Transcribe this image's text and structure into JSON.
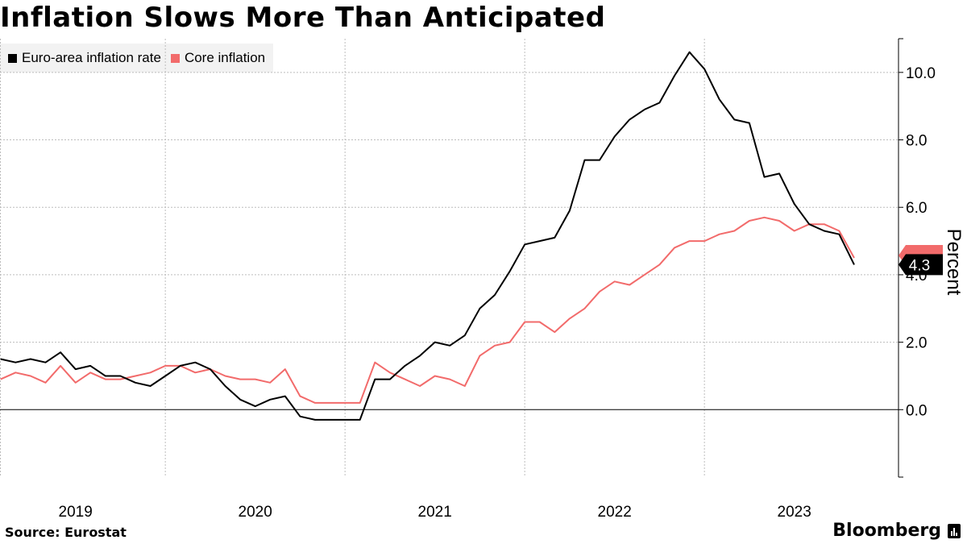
{
  "title": "Inflation Slows More Than Anticipated",
  "legend": [
    {
      "label": "Euro-area inflation rate",
      "color": "#000000"
    },
    {
      "label": "Core inflation",
      "color": "#f26b6b"
    }
  ],
  "source": "Source:  Eurostat",
  "brand": "Bloomberg",
  "chart_data": {
    "type": "line",
    "title": "Inflation Slows More Than Anticipated",
    "xlabel": "",
    "ylabel": "Percent",
    "ylim": [
      -2,
      11
    ],
    "yticks": [
      0,
      2,
      4,
      6,
      8,
      10
    ],
    "ytick_labels": [
      "0.0",
      "2.0",
      "4.0",
      "6.0",
      "8.0",
      "10.0"
    ],
    "xlim": [
      2018.58,
      2023.58
    ],
    "xtick_labels": [
      {
        "label": "2019",
        "year": 2019
      },
      {
        "label": "2020",
        "year": 2020
      },
      {
        "label": "2021",
        "year": 2021
      },
      {
        "label": "2022",
        "year": 2022
      },
      {
        "label": "2023",
        "year": 2023
      }
    ],
    "start": "2018-08",
    "series": [
      {
        "name": "Euro-area inflation rate",
        "color": "#000000",
        "values": [
          1.5,
          1.4,
          1.5,
          1.4,
          1.7,
          1.2,
          1.3,
          1.0,
          1.0,
          0.8,
          0.7,
          1.0,
          1.3,
          1.4,
          1.2,
          0.7,
          0.3,
          0.1,
          0.3,
          0.4,
          -0.2,
          -0.3,
          -0.3,
          -0.3,
          -0.3,
          0.9,
          0.9,
          1.3,
          1.6,
          2.0,
          1.9,
          2.2,
          3.0,
          3.4,
          4.1,
          4.9,
          5.0,
          5.1,
          5.9,
          7.4,
          7.4,
          8.1,
          8.6,
          8.9,
          9.1,
          9.9,
          10.6,
          10.1,
          9.2,
          8.6,
          8.5,
          6.9,
          7.0,
          6.1,
          5.5,
          5.3,
          5.2,
          4.3
        ]
      },
      {
        "name": "Core inflation",
        "color": "#f26b6b",
        "values": [
          0.9,
          1.1,
          1.0,
          0.8,
          1.3,
          0.8,
          1.1,
          0.9,
          0.9,
          1.0,
          1.1,
          1.3,
          1.3,
          1.1,
          1.2,
          1.0,
          0.9,
          0.9,
          0.8,
          1.2,
          0.4,
          0.2,
          0.2,
          0.2,
          0.2,
          1.4,
          1.1,
          0.9,
          0.7,
          1.0,
          0.9,
          0.7,
          1.6,
          1.9,
          2.0,
          2.6,
          2.6,
          2.3,
          2.7,
          3.0,
          3.5,
          3.8,
          3.7,
          4.0,
          4.3,
          4.8,
          5.0,
          5.0,
          5.2,
          5.3,
          5.6,
          5.7,
          5.6,
          5.3,
          5.5,
          5.5,
          5.3,
          4.5
        ]
      }
    ],
    "last_value_label": "4.3",
    "last_value_core": "4.5"
  }
}
